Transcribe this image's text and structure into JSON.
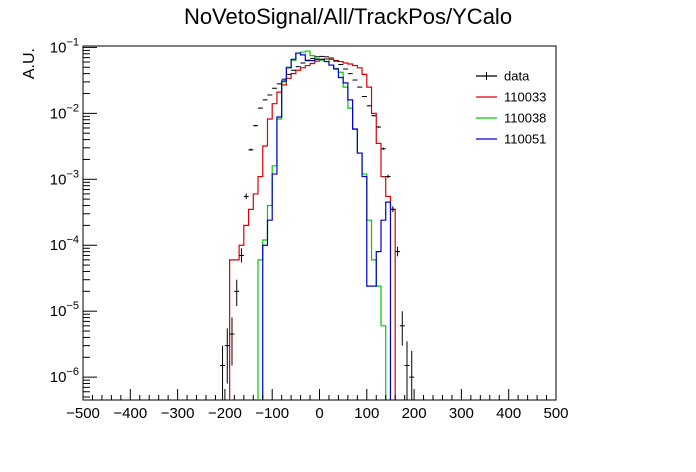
{
  "chart_data": {
    "type": "line",
    "title": "NoVetoSignal/All/TrackPos/YCalo",
    "xlabel": "",
    "ylabel": "A.U.",
    "x_ticks": [
      "−500",
      "−400",
      "−300",
      "−200",
      "−100",
      "0",
      "100",
      "200",
      "300",
      "400",
      "500"
    ],
    "y_ticks": [
      {
        "base": "10",
        "exp": "−6",
        "value": 1e-06
      },
      {
        "base": "10",
        "exp": "−5",
        "value": 1e-05
      },
      {
        "base": "10",
        "exp": "−4",
        "value": 0.0001
      },
      {
        "base": "10",
        "exp": "−3",
        "value": 0.001
      },
      {
        "base": "10",
        "exp": "−2",
        "value": 0.01
      },
      {
        "base": "10",
        "exp": "−1",
        "value": 0.1
      }
    ],
    "xlim": [
      -500,
      500
    ],
    "ylim": [
      4.5e-07,
      0.105
    ],
    "log_y": true,
    "grid": false,
    "legend_position": "top-right",
    "series": [
      {
        "name": "data",
        "style": "points",
        "color": "#000000",
        "x": [
          -205,
          -195,
          -185,
          -175,
          -165,
          -155,
          -145,
          -135,
          -125,
          -115,
          -105,
          -95,
          -85,
          -75,
          -65,
          -55,
          -45,
          -35,
          -25,
          -15,
          -5,
          5,
          15,
          25,
          35,
          45,
          55,
          65,
          75,
          85,
          95,
          105,
          115,
          125,
          135,
          145,
          155,
          165,
          175,
          185,
          195
        ],
        "y": [
          1.5e-06,
          3e-06,
          4.5e-06,
          2e-05,
          7e-05,
          0.00055,
          0.0028,
          0.0065,
          0.012,
          0.016,
          0.019,
          0.024,
          0.028,
          0.033,
          0.039,
          0.045,
          0.051,
          0.058,
          0.064,
          0.068,
          0.072,
          0.073,
          0.072,
          0.069,
          0.062,
          0.055,
          0.047,
          0.04,
          0.032,
          0.025,
          0.018,
          0.013,
          0.0092,
          0.0062,
          0.0029,
          0.0011,
          0.00035,
          8e-05,
          6e-06,
          1.5e-06,
          1e-06
        ],
        "yerr_low": [
          1.2e-06,
          2.2e-06,
          3e-06,
          8e-06,
          1.5e-05,
          5e-05,
          0.0001,
          0.00015,
          0.0002,
          0.00025,
          0.00025,
          0.0003,
          0.0003,
          0.0003,
          0.0003,
          0.0003,
          0.0003,
          0.0003,
          0.0003,
          0.0003,
          0.0003,
          0.0003,
          0.0003,
          0.0003,
          0.0003,
          0.0003,
          0.0003,
          0.0003,
          0.0003,
          0.0003,
          0.00025,
          0.0002,
          0.00015,
          0.00015,
          0.0001,
          6e-05,
          3e-05,
          1.2e-05,
          3e-06,
          1.2e-06,
          9e-07
        ],
        "yerr_high": [
          1.5e-06,
          2.5e-06,
          3.5e-06,
          1e-05,
          2e-05,
          6e-05,
          0.00012,
          0.00018,
          0.00025,
          0.0003,
          0.0003,
          0.00035,
          0.00035,
          0.00035,
          0.00035,
          0.00035,
          0.00035,
          0.00035,
          0.00035,
          0.00035,
          0.00035,
          0.00035,
          0.00035,
          0.00035,
          0.00035,
          0.00035,
          0.00035,
          0.00035,
          0.00035,
          0.00035,
          0.0003,
          0.00025,
          0.0002,
          0.00018,
          0.00012,
          8e-05,
          4e-05,
          1.5e-05,
          4e-06,
          2e-06,
          1.5e-06
        ]
      },
      {
        "name": "110033",
        "style": "step",
        "color": "#e00000",
        "bin_edges": [
          -190,
          -180,
          -170,
          -160,
          -150,
          -140,
          -130,
          -120,
          -110,
          -100,
          -90,
          -80,
          -70,
          -60,
          -50,
          -40,
          -30,
          -20,
          -10,
          0,
          10,
          20,
          30,
          40,
          50,
          60,
          70,
          80,
          90,
          100,
          110,
          120,
          130,
          140,
          150,
          160
        ],
        "values": [
          6e-05,
          6e-05,
          0.0001,
          0.0002,
          0.00035,
          0.0006,
          0.0011,
          0.0032,
          0.0082,
          0.014,
          0.021,
          0.027,
          0.034,
          0.04,
          0.045,
          0.049,
          0.053,
          0.057,
          0.062,
          0.066,
          0.067,
          0.066,
          0.063,
          0.061,
          0.058,
          0.056,
          0.053,
          0.049,
          0.039,
          0.025,
          0.01,
          0.0035,
          0.0011,
          0.00055,
          0.00035
        ]
      },
      {
        "name": "110038",
        "style": "step",
        "color": "#00cc00",
        "bin_edges": [
          -130,
          -120,
          -110,
          -100,
          -90,
          -80,
          -70,
          -60,
          -50,
          -40,
          -30,
          -20,
          -10,
          0,
          10,
          20,
          30,
          40,
          50,
          60,
          70,
          80,
          90,
          100,
          110,
          120,
          130,
          140
        ],
        "values": [
          6e-05,
          0.00012,
          0.0004,
          0.0016,
          0.0082,
          0.03,
          0.05,
          0.064,
          0.082,
          0.085,
          0.088,
          0.075,
          0.067,
          0.064,
          0.066,
          0.054,
          0.048,
          0.042,
          0.025,
          0.012,
          0.0057,
          0.0025,
          0.0012,
          0.00024,
          6e-05,
          2.4e-05,
          6e-06
        ]
      },
      {
        "name": "110051",
        "style": "step",
        "color": "#0000cc",
        "bin_edges": [
          -120,
          -110,
          -100,
          -90,
          -80,
          -70,
          -60,
          -50,
          -40,
          -30,
          -20,
          -10,
          0,
          10,
          20,
          30,
          40,
          50,
          60,
          70,
          80,
          90,
          100,
          110,
          120,
          130,
          140,
          150
        ],
        "values": [
          0.0001,
          0.00024,
          0.0012,
          0.0088,
          0.031,
          0.049,
          0.066,
          0.082,
          0.077,
          0.063,
          0.063,
          0.066,
          0.066,
          0.061,
          0.054,
          0.047,
          0.035,
          0.029,
          0.016,
          0.0058,
          0.0025,
          0.0011,
          2.4e-05,
          2.4e-05,
          8e-05,
          0.00024,
          0.00045
        ]
      }
    ]
  }
}
